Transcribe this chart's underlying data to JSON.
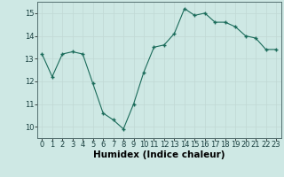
{
  "x": [
    0,
    1,
    2,
    3,
    4,
    5,
    6,
    7,
    8,
    9,
    10,
    11,
    12,
    13,
    14,
    15,
    16,
    17,
    18,
    19,
    20,
    21,
    22,
    23
  ],
  "y": [
    13.2,
    12.2,
    13.2,
    13.3,
    13.2,
    11.9,
    10.6,
    10.3,
    9.9,
    11.0,
    12.4,
    13.5,
    13.6,
    14.1,
    15.2,
    14.9,
    15.0,
    14.6,
    14.6,
    14.4,
    14.0,
    13.9,
    13.4,
    13.4
  ],
  "xlabel": "Humidex (Indice chaleur)",
  "ylim": [
    9.5,
    15.5
  ],
  "yticks": [
    10,
    11,
    12,
    13,
    14,
    15
  ],
  "xticks": [
    0,
    1,
    2,
    3,
    4,
    5,
    6,
    7,
    8,
    9,
    10,
    11,
    12,
    13,
    14,
    15,
    16,
    17,
    18,
    19,
    20,
    21,
    22,
    23
  ],
  "line_color": "#1a6b5a",
  "marker_color": "#1a6b5a",
  "bg_color": "#cee8e4",
  "grid_color": "#c0d8d4",
  "tick_label_fontsize": 6.0,
  "xlabel_fontsize": 7.5,
  "figsize": [
    3.2,
    2.0
  ],
  "dpi": 100
}
